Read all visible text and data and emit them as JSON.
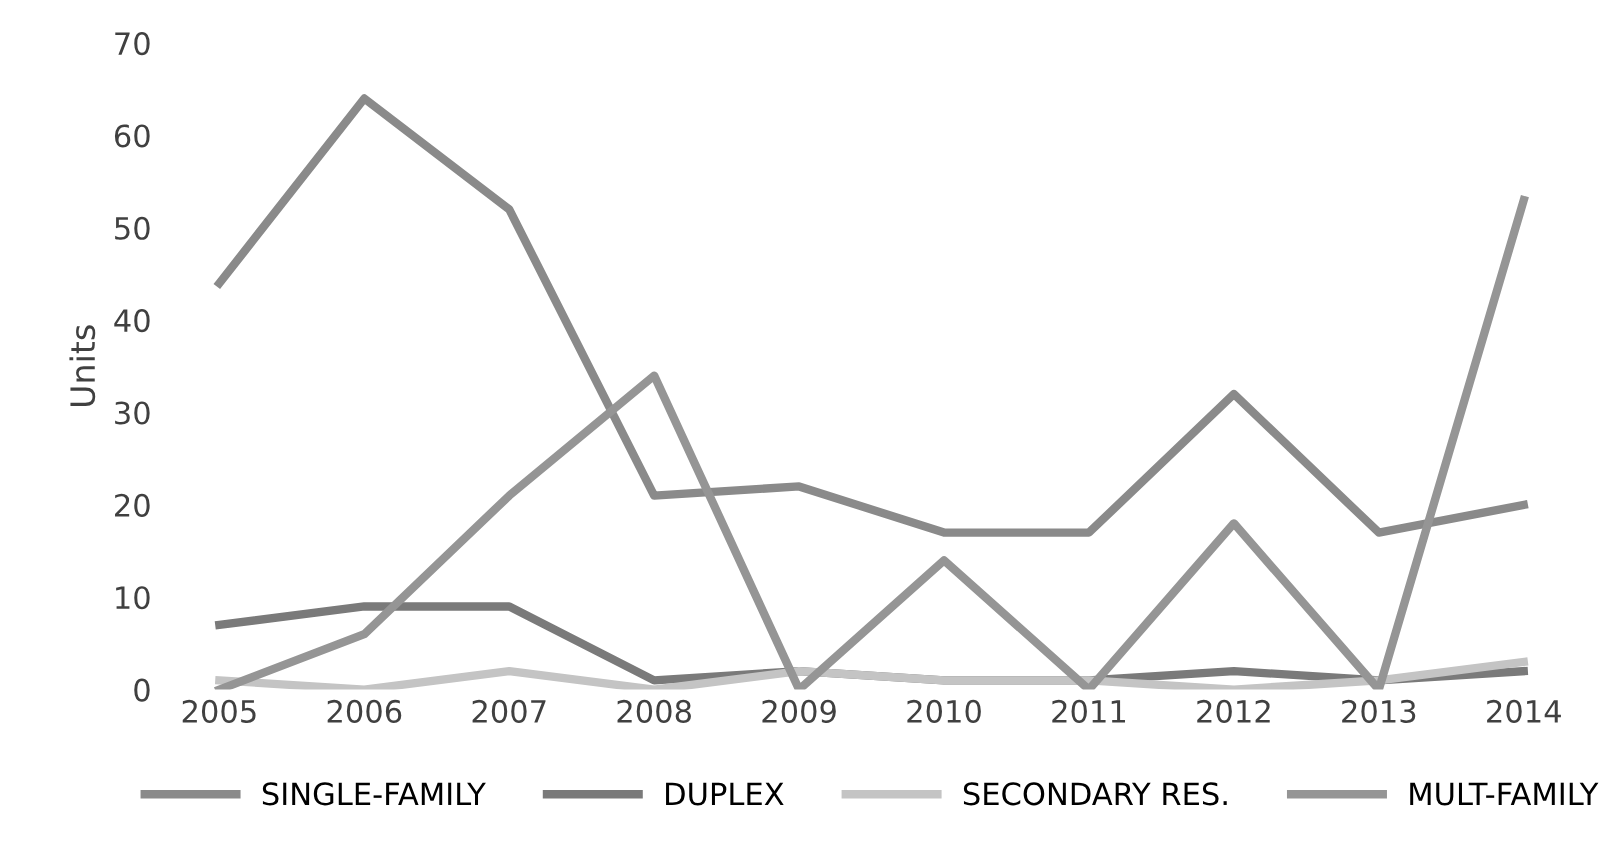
{
  "chart_data": {
    "type": "line",
    "ylabel": "Units",
    "categories": [
      "2005",
      "2006",
      "2007",
      "2008",
      "2009",
      "2010",
      "2011",
      "2012",
      "2013",
      "2014"
    ],
    "series": [
      {
        "name": "SINGLE-FAMILY",
        "color": "#8a8a8a",
        "values": [
          44,
          64,
          52,
          21,
          22,
          17,
          17,
          32,
          17,
          20
        ]
      },
      {
        "name": "DUPLEX",
        "color": "#7a7a7a",
        "values": [
          7,
          9,
          9,
          1,
          2,
          1,
          1,
          2,
          1,
          2
        ]
      },
      {
        "name": "SECONDARY RES.",
        "color": "#c4c4c4",
        "values": [
          1,
          0,
          2,
          0,
          2,
          1,
          1,
          0,
          1,
          3
        ]
      },
      {
        "name": "MULT-FAMILY",
        "color": "#959595",
        "values": [
          0,
          6,
          21,
          34,
          0,
          14,
          0,
          18,
          0,
          53
        ]
      }
    ],
    "ylim": [
      0,
      70
    ],
    "yticks": [
      0,
      10,
      20,
      30,
      40,
      50,
      60,
      70
    ],
    "grid": false,
    "legend": "bottom",
    "marker": "none",
    "line_style": "solid"
  }
}
